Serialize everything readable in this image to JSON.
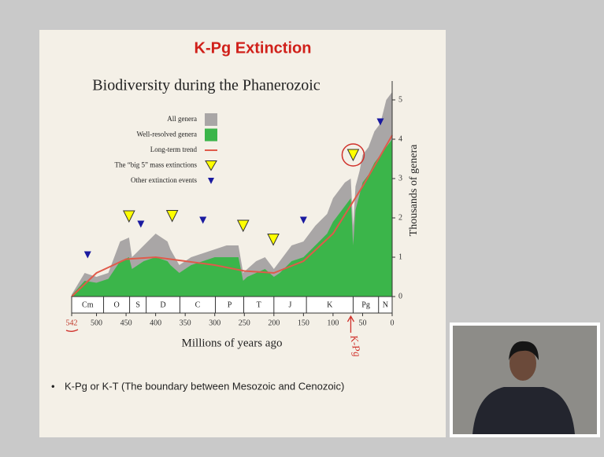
{
  "slide": {
    "title": "K-Pg Extinction",
    "bullet": "K-Pg or K-T (The boundary between Mesozoic and Cenozoic)"
  },
  "chart_data": {
    "type": "area",
    "title": "Biodiversity during the Phanerozoic",
    "x_label": "Millions of years ago",
    "y_label": "Thousands of genera",
    "x": [
      542,
      520,
      500,
      480,
      460,
      445,
      440,
      420,
      400,
      380,
      375,
      360,
      340,
      320,
      300,
      280,
      260,
      252,
      245,
      230,
      215,
      200,
      190,
      170,
      150,
      130,
      110,
      100,
      90,
      80,
      70,
      66,
      62,
      55,
      50,
      40,
      30,
      20,
      10,
      0
    ],
    "series": [
      {
        "name": "All genera",
        "color": "#a9a6a6",
        "values": [
          0.05,
          0.6,
          0.5,
          0.6,
          1.4,
          1.5,
          1.0,
          1.3,
          1.6,
          1.4,
          1.2,
          0.8,
          1.0,
          1.1,
          1.2,
          1.3,
          1.3,
          0.6,
          0.7,
          0.9,
          1.0,
          0.7,
          0.9,
          1.3,
          1.4,
          1.8,
          2.1,
          2.5,
          2.7,
          2.9,
          3.0,
          1.8,
          2.8,
          3.2,
          3.6,
          3.8,
          4.2,
          4.4,
          5.0,
          5.2
        ]
      },
      {
        "name": "Well-resolved genera",
        "color": "#3bb54a",
        "values": [
          0.03,
          0.4,
          0.35,
          0.45,
          0.9,
          1.0,
          0.7,
          0.9,
          1.0,
          0.9,
          0.8,
          0.6,
          0.8,
          0.9,
          1.0,
          1.0,
          1.0,
          0.4,
          0.5,
          0.6,
          0.7,
          0.5,
          0.6,
          0.9,
          1.0,
          1.3,
          1.6,
          1.9,
          2.1,
          2.3,
          2.5,
          1.3,
          2.2,
          2.6,
          2.9,
          3.1,
          3.4,
          3.6,
          3.8,
          4.0
        ]
      }
    ],
    "trend": {
      "name": "Long-term trend",
      "color": "#e05a4a",
      "x": [
        542,
        500,
        450,
        400,
        350,
        300,
        250,
        200,
        150,
        100,
        50,
        0
      ],
      "values": [
        0,
        0.6,
        0.95,
        1.0,
        0.9,
        0.8,
        0.65,
        0.6,
        0.9,
        1.6,
        2.8,
        4.1
      ]
    },
    "events": [
      {
        "name": "The “big 5” mass extinctions",
        "color": "#ffff00",
        "x": [
          445,
          372,
          252,
          201,
          66
        ],
        "y": [
          2.04,
          2.05,
          1.8,
          1.45,
          3.6
        ]
      },
      {
        "name": "Other extinction events",
        "color": "#1a1aa0",
        "x": [
          515,
          425,
          320,
          150,
          20
        ],
        "y": [
          1.06,
          1.84,
          1.94,
          1.94,
          4.44
        ]
      }
    ],
    "periods": [
      {
        "label": "Cm",
        "start": 542,
        "end": 488
      },
      {
        "label": "O",
        "start": 488,
        "end": 444
      },
      {
        "label": "S",
        "start": 444,
        "end": 416
      },
      {
        "label": "D",
        "start": 416,
        "end": 359
      },
      {
        "label": "C",
        "start": 359,
        "end": 299
      },
      {
        "label": "P",
        "start": 299,
        "end": 251
      },
      {
        "label": "T",
        "start": 251,
        "end": 200
      },
      {
        "label": "J",
        "start": 200,
        "end": 145
      },
      {
        "label": "K",
        "start": 145,
        "end": 66
      },
      {
        "label": "Pg",
        "start": 66,
        "end": 23
      },
      {
        "label": "N",
        "start": 23,
        "end": 0
      }
    ],
    "xlim": [
      542,
      0
    ],
    "xticks": [
      542,
      500,
      450,
      400,
      350,
      300,
      250,
      200,
      150,
      100,
      50,
      0
    ],
    "ylim": [
      0,
      5.4
    ],
    "yticks": [
      0,
      1,
      2,
      3,
      4,
      5
    ],
    "annotation": "K-Pg"
  }
}
